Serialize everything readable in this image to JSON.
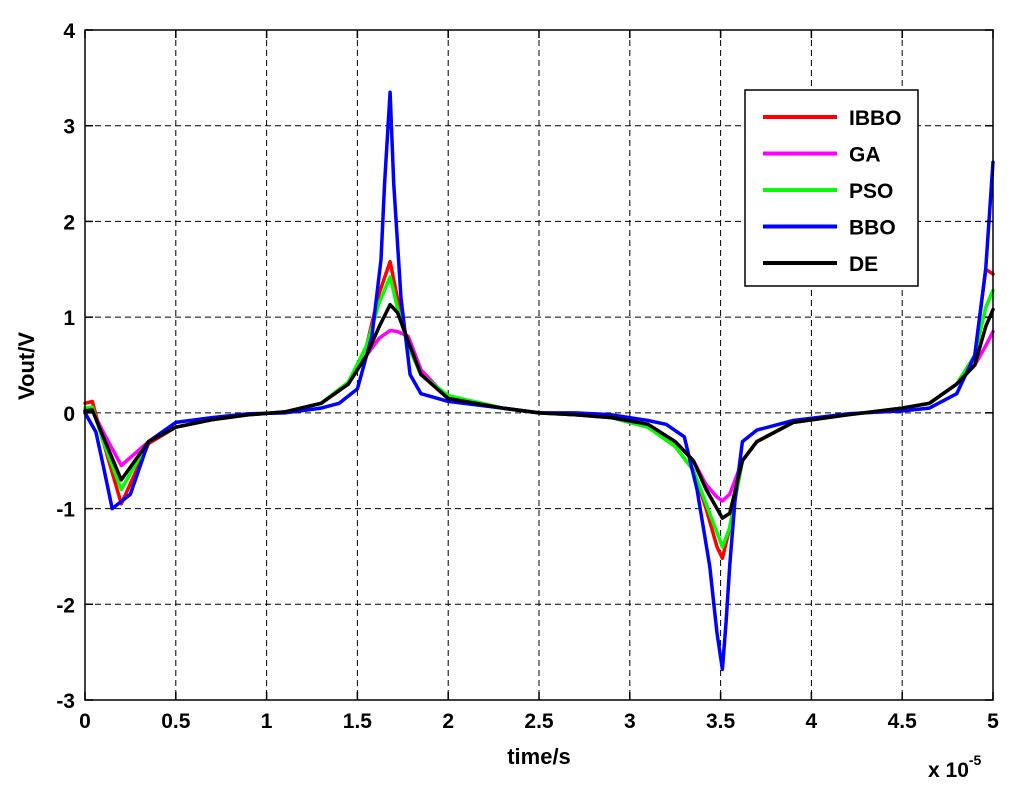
{
  "chart_data": {
    "type": "line",
    "xlabel": "time/s",
    "ylabel": "Vout/V",
    "x_multiplier_label": "x 10",
    "x_multiplier_exponent": "-5",
    "xlim": [
      0,
      5
    ],
    "ylim": [
      -3,
      4
    ],
    "xticks": [
      "0",
      "0.5",
      "1",
      "1.5",
      "2",
      "2.5",
      "3",
      "3.5",
      "4",
      "4.5",
      "5"
    ],
    "yticks": [
      "-3",
      "-2",
      "-1",
      "0",
      "1",
      "2",
      "3",
      "4"
    ],
    "grid": true,
    "legend_position": "top-right",
    "series": [
      {
        "name": "IBBO",
        "color": "#ff0000",
        "x": [
          0,
          0.04,
          0.1,
          0.2,
          0.35,
          0.5,
          0.7,
          0.9,
          1.1,
          1.3,
          1.45,
          1.55,
          1.62,
          1.68,
          1.72,
          1.78,
          1.85,
          2.0,
          2.3,
          2.5,
          2.7,
          2.9,
          3.1,
          3.25,
          3.35,
          3.42,
          3.48,
          3.51,
          3.55,
          3.62,
          3.7,
          3.9,
          4.2,
          4.5,
          4.65,
          4.8,
          4.9,
          4.96,
          5.0
        ],
        "y": [
          0.1,
          0.12,
          -0.3,
          -0.95,
          -0.32,
          -0.15,
          -0.07,
          -0.02,
          0.01,
          0.1,
          0.3,
          0.7,
          1.25,
          1.58,
          1.2,
          0.7,
          0.4,
          0.15,
          0.05,
          0.0,
          -0.02,
          -0.05,
          -0.15,
          -0.35,
          -0.6,
          -1.0,
          -1.4,
          -1.52,
          -1.2,
          -0.5,
          -0.3,
          -0.1,
          -0.02,
          0.05,
          0.1,
          0.3,
          0.6,
          1.5,
          1.45
        ]
      },
      {
        "name": "GA",
        "color": "#ff00ff",
        "x": [
          0,
          0.04,
          0.1,
          0.2,
          0.35,
          0.5,
          0.7,
          0.9,
          1.1,
          1.3,
          1.45,
          1.55,
          1.62,
          1.68,
          1.72,
          1.78,
          1.85,
          2.0,
          2.3,
          2.5,
          2.7,
          2.9,
          3.1,
          3.25,
          3.35,
          3.42,
          3.48,
          3.51,
          3.55,
          3.62,
          3.7,
          3.9,
          4.2,
          4.5,
          4.65,
          4.8,
          4.9,
          4.96,
          5.0
        ],
        "y": [
          0.0,
          0.03,
          -0.2,
          -0.55,
          -0.3,
          -0.15,
          -0.07,
          -0.02,
          0.01,
          0.1,
          0.3,
          0.6,
          0.78,
          0.86,
          0.85,
          0.8,
          0.45,
          0.15,
          0.05,
          0.0,
          -0.02,
          -0.05,
          -0.12,
          -0.3,
          -0.5,
          -0.75,
          -0.88,
          -0.92,
          -0.85,
          -0.5,
          -0.3,
          -0.1,
          -0.02,
          0.05,
          0.1,
          0.3,
          0.5,
          0.7,
          0.85
        ]
      },
      {
        "name": "PSO",
        "color": "#00ff00",
        "x": [
          0,
          0.04,
          0.1,
          0.2,
          0.35,
          0.5,
          0.7,
          0.9,
          1.1,
          1.3,
          1.45,
          1.55,
          1.62,
          1.68,
          1.72,
          1.78,
          1.85,
          2.0,
          2.3,
          2.5,
          2.7,
          2.9,
          3.1,
          3.25,
          3.35,
          3.42,
          3.48,
          3.51,
          3.55,
          3.62,
          3.7,
          3.9,
          4.2,
          4.5,
          4.65,
          4.8,
          4.9,
          4.96,
          5.0
        ],
        "y": [
          0.05,
          0.06,
          -0.3,
          -0.8,
          -0.3,
          -0.15,
          -0.07,
          -0.02,
          0.01,
          0.1,
          0.32,
          0.7,
          1.15,
          1.42,
          1.1,
          0.7,
          0.4,
          0.18,
          0.05,
          0.0,
          -0.02,
          -0.05,
          -0.15,
          -0.35,
          -0.6,
          -0.95,
          -1.25,
          -1.4,
          -1.2,
          -0.5,
          -0.3,
          -0.1,
          -0.02,
          0.05,
          0.1,
          0.3,
          0.6,
          1.1,
          1.28
        ]
      },
      {
        "name": "BBO",
        "color": "#0000ff",
        "x": [
          0,
          0.06,
          0.1,
          0.15,
          0.25,
          0.35,
          0.5,
          0.7,
          0.9,
          1.1,
          1.3,
          1.4,
          1.5,
          1.58,
          1.63,
          1.65,
          1.68,
          1.7,
          1.74,
          1.79,
          1.85,
          2.0,
          2.3,
          2.5,
          2.7,
          2.9,
          3.1,
          3.2,
          3.3,
          3.37,
          3.44,
          3.48,
          3.51,
          3.53,
          3.55,
          3.58,
          3.62,
          3.7,
          3.9,
          4.2,
          4.5,
          4.65,
          4.8,
          4.9,
          4.96,
          5.0
        ],
        "y": [
          0.0,
          -0.2,
          -0.55,
          -1.0,
          -0.85,
          -0.3,
          -0.1,
          -0.05,
          -0.01,
          0.0,
          0.05,
          0.1,
          0.25,
          0.8,
          1.6,
          2.4,
          3.35,
          2.4,
          1.2,
          0.4,
          0.2,
          0.12,
          0.05,
          0.0,
          0.0,
          -0.02,
          -0.08,
          -0.12,
          -0.25,
          -0.8,
          -1.6,
          -2.3,
          -2.68,
          -2.2,
          -1.6,
          -0.9,
          -0.3,
          -0.18,
          -0.08,
          -0.01,
          0.02,
          0.05,
          0.2,
          0.6,
          1.5,
          2.62
        ]
      },
      {
        "name": "DE",
        "color": "#000000",
        "x": [
          0,
          0.04,
          0.1,
          0.2,
          0.35,
          0.5,
          0.7,
          0.9,
          1.1,
          1.3,
          1.45,
          1.55,
          1.62,
          1.68,
          1.72,
          1.78,
          1.85,
          2.0,
          2.3,
          2.5,
          2.7,
          2.9,
          3.1,
          3.25,
          3.35,
          3.42,
          3.48,
          3.51,
          3.55,
          3.62,
          3.7,
          3.9,
          4.2,
          4.5,
          4.65,
          4.8,
          4.9,
          4.96,
          5.0
        ],
        "y": [
          0.02,
          0.03,
          -0.25,
          -0.7,
          -0.3,
          -0.15,
          -0.07,
          -0.02,
          0.01,
          0.1,
          0.3,
          0.6,
          0.9,
          1.13,
          1.05,
          0.75,
          0.4,
          0.15,
          0.05,
          0.0,
          -0.02,
          -0.05,
          -0.12,
          -0.3,
          -0.5,
          -0.8,
          -1.0,
          -1.1,
          -1.05,
          -0.5,
          -0.3,
          -0.1,
          -0.02,
          0.05,
          0.1,
          0.3,
          0.5,
          0.9,
          1.08
        ]
      }
    ]
  }
}
